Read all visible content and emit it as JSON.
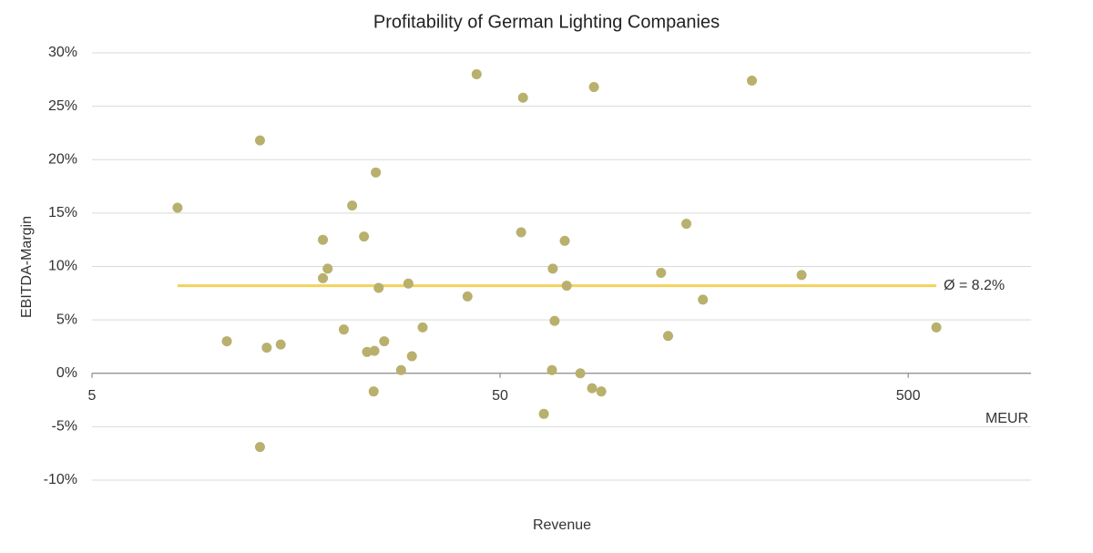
{
  "chart_data": {
    "type": "scatter",
    "title": "Profitability of German Lighting Companies",
    "x_label": "Revenue",
    "y_label": "EBITDA-Margin",
    "x_unit": "MEUR",
    "x_log": true,
    "grid": true,
    "color": "#b8b06c",
    "xlim": [
      5,
      1000
    ],
    "xticks": [
      5,
      50,
      500
    ],
    "ylim": [
      -10,
      30
    ],
    "yticks": [
      {
        "value": -10,
        "label": "-10%"
      },
      {
        "value": -5,
        "label": "-5%"
      },
      {
        "value": 0,
        "label": "0%"
      },
      {
        "value": 5,
        "label": "5%"
      },
      {
        "value": 10,
        "label": "10%"
      },
      {
        "value": 15,
        "label": "15%"
      },
      {
        "value": 20,
        "label": "20%"
      },
      {
        "value": 25,
        "label": "25%"
      },
      {
        "value": 30,
        "label": "30%"
      }
    ],
    "average": {
      "value": 8.2,
      "label": "Ø = 8.2%",
      "color": "#f2d35a"
    },
    "x": [
      8.1,
      10.7,
      12.9,
      12.9,
      13.4,
      14.5,
      18.4,
      18.4,
      18.9,
      20.7,
      21.7,
      23.2,
      23.6,
      24.5,
      24.6,
      24.8,
      25.2,
      26.0,
      28.6,
      29.8,
      30.4,
      32.3,
      41.6,
      43.8,
      56.3,
      56.9,
      64.0,
      67.0,
      67.3,
      68.0,
      72.0,
      72.8,
      78.6,
      84.0,
      84.9,
      88.5,
      124,
      129,
      143,
      157,
      207,
      274,
      586
    ],
    "y": [
      15.5,
      3.0,
      21.8,
      -6.9,
      2.4,
      2.7,
      12.5,
      8.9,
      9.8,
      4.1,
      15.7,
      12.8,
      2.0,
      -1.7,
      2.1,
      18.8,
      8.0,
      3.0,
      0.3,
      8.4,
      1.6,
      4.3,
      7.2,
      28.0,
      13.2,
      25.8,
      -3.8,
      0.3,
      9.8,
      4.9,
      12.4,
      8.2,
      0,
      -1.4,
      26.8,
      -1.7,
      9.4,
      3.5,
      14.0,
      6.9,
      27.4,
      9.2,
      4.3
    ]
  }
}
